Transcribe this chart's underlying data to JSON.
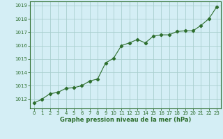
{
  "x": [
    0,
    1,
    2,
    3,
    4,
    5,
    6,
    7,
    8,
    9,
    10,
    11,
    12,
    13,
    14,
    15,
    16,
    17,
    18,
    19,
    20,
    21,
    22,
    23
  ],
  "y": [
    1011.7,
    1012.0,
    1012.4,
    1012.5,
    1012.8,
    1012.85,
    1013.0,
    1013.35,
    1013.5,
    1014.7,
    1015.05,
    1016.0,
    1016.2,
    1016.45,
    1016.2,
    1016.7,
    1016.8,
    1016.8,
    1017.05,
    1017.1,
    1017.1,
    1017.5,
    1018.0,
    1018.9
  ],
  "line_color": "#2d6e2d",
  "marker": "D",
  "marker_size": 2.2,
  "bg_color": "#d4eef5",
  "grid_color": "#aacfcf",
  "xlabel": "Graphe pression niveau de la mer (hPa)",
  "xlabel_color": "#2d6e2d",
  "ylabel_ticks": [
    1012,
    1013,
    1014,
    1015,
    1016,
    1017,
    1018,
    1019
  ],
  "ylim": [
    1011.3,
    1019.3
  ],
  "xlim": [
    -0.5,
    23.5
  ],
  "xticks": [
    0,
    1,
    2,
    3,
    4,
    5,
    6,
    7,
    8,
    9,
    10,
    11,
    12,
    13,
    14,
    15,
    16,
    17,
    18,
    19,
    20,
    21,
    22,
    23
  ],
  "tick_color": "#2d6e2d",
  "spine_color": "#2d6e2d",
  "ytick_fontsize": 5.0,
  "xtick_fontsize": 5.0,
  "xlabel_fontsize": 6.0
}
